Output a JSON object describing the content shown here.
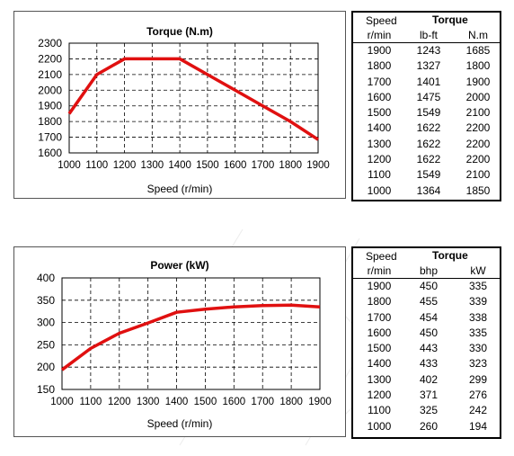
{
  "chart_data": [
    {
      "type": "line",
      "title": "Torque (N.m)",
      "xlabel": "Speed (r/min)",
      "ylabel": "",
      "x": [
        1000,
        1100,
        1200,
        1300,
        1400,
        1500,
        1600,
        1700,
        1800,
        1900
      ],
      "series": [
        {
          "values": [
            1850,
            2100,
            2200,
            2200,
            2200,
            2100,
            2000,
            1900,
            1800,
            1685
          ]
        }
      ],
      "xlim": [
        1000,
        1900
      ],
      "ylim": [
        1600,
        2300
      ],
      "xticks": [
        "1000",
        "1100",
        "1200",
        "1300",
        "1400",
        "1500",
        "1600",
        "1700",
        "1800",
        "1900"
      ],
      "yticks": [
        "1600",
        "1700",
        "1800",
        "1900",
        "2000",
        "2100",
        "2200",
        "2300"
      ],
      "grid": true,
      "line_color": "#e01010"
    },
    {
      "type": "line",
      "title": "Power (kW)",
      "xlabel": "Speed (r/min)",
      "ylabel": "",
      "x": [
        1000,
        1100,
        1200,
        1300,
        1400,
        1500,
        1600,
        1700,
        1800,
        1900
      ],
      "series": [
        {
          "values": [
            194,
            242,
            276,
            299,
            323,
            330,
            335,
            338,
            339,
            335
          ]
        }
      ],
      "xlim": [
        1000,
        1900
      ],
      "ylim": [
        150,
        400
      ],
      "xticks": [
        "1000",
        "1100",
        "1200",
        "1300",
        "1400",
        "1500",
        "1600",
        "1700",
        "1800",
        "1900"
      ],
      "yticks": [
        "150",
        "200",
        "250",
        "300",
        "350",
        "400"
      ],
      "grid": true,
      "line_color": "#e01010"
    }
  ],
  "torque_table": {
    "header_speed": "Speed",
    "header_title": "Torque",
    "units": [
      "r/min",
      "lb-ft",
      "N.m"
    ],
    "rows": [
      [
        "1900",
        "1243",
        "1685"
      ],
      [
        "1800",
        "1327",
        "1800"
      ],
      [
        "1700",
        "1401",
        "1900"
      ],
      [
        "1600",
        "1475",
        "2000"
      ],
      [
        "1500",
        "1549",
        "2100"
      ],
      [
        "1400",
        "1622",
        "2200"
      ],
      [
        "1300",
        "1622",
        "2200"
      ],
      [
        "1200",
        "1622",
        "2200"
      ],
      [
        "1100",
        "1549",
        "2100"
      ],
      [
        "1000",
        "1364",
        "1850"
      ]
    ]
  },
  "power_table": {
    "header_speed": "Speed",
    "header_title": "Torque",
    "units": [
      "r/min",
      "bhp",
      "kW"
    ],
    "rows": [
      [
        "1900",
        "450",
        "335"
      ],
      [
        "1800",
        "455",
        "339"
      ],
      [
        "1700",
        "454",
        "338"
      ],
      [
        "1600",
        "450",
        "335"
      ],
      [
        "1500",
        "443",
        "330"
      ],
      [
        "1400",
        "433",
        "323"
      ],
      [
        "1300",
        "402",
        "299"
      ],
      [
        "1200",
        "371",
        "276"
      ],
      [
        "1100",
        "325",
        "242"
      ],
      [
        "1000",
        "260",
        "194"
      ]
    ]
  }
}
